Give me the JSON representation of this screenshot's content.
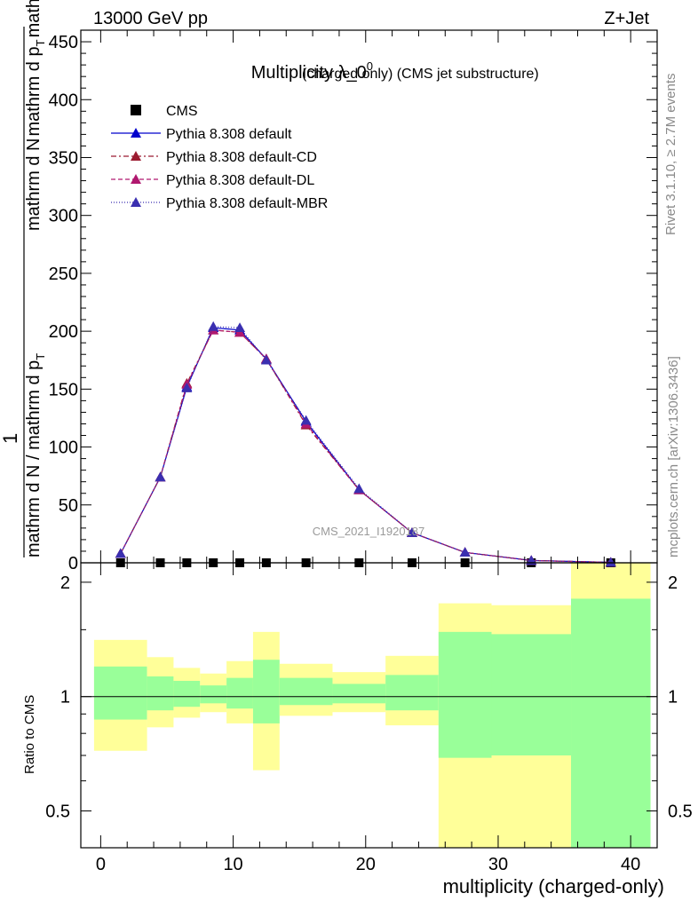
{
  "header": {
    "left": "13000 GeV pp",
    "right": "Z+Jet"
  },
  "side_notes": {
    "rivet": "Rivet 3.1.10, ≥ 2.7M events",
    "mcplots": "mcplots.cern.ch [arXiv:1306.3436]"
  },
  "watermark": "CMS_2021_I1920187",
  "chart_data": {
    "type": "line",
    "title": "Multiplicity λ_0",
    "title_sup": "0",
    "title_suffix": "(charged only) (CMS jet substructure)",
    "main_panel": {
      "ylabel_top": "1",
      "ylabel_numerator": "mathrm d N",
      "ylabel_bottom": "mathrm d N / mathrm d p",
      "ylabel_bottom_sub": "T",
      "ylabel_bottom_tail": "mathrm d p",
      "ylabel_bottom_sub2": "T",
      "ylabel_bottom_end": "mathrm d lambda",
      "ylim": [
        0,
        460
      ],
      "yticks": [
        0,
        50,
        100,
        150,
        200,
        250,
        300,
        350,
        400,
        450
      ],
      "legend_position": "top-left",
      "series": [
        {
          "name": "CMS",
          "marker": "square",
          "color": "#000000",
          "x": [
            1.5,
            4.5,
            6.5,
            8.5,
            10.5,
            12.5,
            15.5,
            19.5,
            23.5,
            27.5,
            32.5,
            38.5
          ],
          "y": [
            0,
            0,
            0,
            0,
            0,
            0,
            0,
            0,
            0,
            0,
            0,
            0
          ]
        },
        {
          "name": "Pythia 8.308 default",
          "marker": "triangle",
          "color": "#0000cc",
          "dash": "",
          "x": [
            1.5,
            4.5,
            6.5,
            8.5,
            10.5,
            12.5,
            15.5,
            19.5,
            23.5,
            27.5,
            32.5,
            38.5
          ],
          "y": [
            8,
            74,
            152,
            203,
            201,
            176,
            122,
            63,
            26,
            9,
            2,
            0.4
          ]
        },
        {
          "name": "Pythia 8.308 default-CD",
          "marker": "triangle",
          "color": "#9b1b30",
          "dash": "6,3,2,3",
          "x": [
            1.5,
            4.5,
            6.5,
            8.5,
            10.5,
            12.5,
            15.5,
            19.5,
            23.5,
            27.5,
            32.5,
            38.5
          ],
          "y": [
            8,
            74,
            155,
            201,
            199,
            176,
            119,
            63,
            26,
            9,
            2,
            0.4
          ]
        },
        {
          "name": "Pythia 8.308 default-DL",
          "marker": "triangle",
          "color": "#b0186f",
          "dash": "5,3",
          "x": [
            1.5,
            4.5,
            6.5,
            8.5,
            10.5,
            12.5,
            15.5,
            19.5,
            23.5,
            27.5,
            32.5,
            38.5
          ],
          "y": [
            8,
            74,
            154,
            201,
            199,
            176,
            120,
            63,
            26,
            9,
            2,
            0.4
          ]
        },
        {
          "name": "Pythia 8.308 default-MBR",
          "marker": "triangle",
          "color": "#3a2fb0",
          "dash": "1,2",
          "x": [
            1.5,
            4.5,
            6.5,
            8.5,
            10.5,
            12.5,
            15.5,
            19.5,
            23.5,
            27.5,
            32.5,
            38.5
          ],
          "y": [
            8,
            74,
            151,
            204,
            203,
            175,
            123,
            64,
            26,
            9,
            2,
            0.4
          ]
        }
      ]
    },
    "ratio_panel": {
      "ylabel": "Ratio to CMS",
      "yticks": [
        0.5,
        1,
        2
      ],
      "ylim": [
        0.4,
        2.25
      ],
      "green_color": "#99ff99",
      "yellow_color": "#ffff99",
      "bands": [
        {
          "x0": -0.5,
          "x1": 3.5,
          "y_lo": 0.72,
          "g_lo": 0.87,
          "g_hi": 1.2,
          "y_hi": 1.41
        },
        {
          "x0": 3.5,
          "x1": 5.5,
          "y_lo": 0.83,
          "g_lo": 0.92,
          "g_hi": 1.13,
          "y_hi": 1.27
        },
        {
          "x0": 5.5,
          "x1": 7.5,
          "y_lo": 0.88,
          "g_lo": 0.94,
          "g_hi": 1.1,
          "y_hi": 1.19
        },
        {
          "x0": 7.5,
          "x1": 9.5,
          "y_lo": 0.91,
          "g_lo": 0.96,
          "g_hi": 1.07,
          "y_hi": 1.15
        },
        {
          "x0": 9.5,
          "x1": 11.5,
          "y_lo": 0.85,
          "g_lo": 0.93,
          "g_hi": 1.12,
          "y_hi": 1.24
        },
        {
          "x0": 11.5,
          "x1": 13.5,
          "y_lo": 0.64,
          "g_lo": 0.85,
          "g_hi": 1.25,
          "y_hi": 1.48
        },
        {
          "x0": 13.5,
          "x1": 17.5,
          "y_lo": 0.89,
          "g_lo": 0.95,
          "g_hi": 1.12,
          "y_hi": 1.22
        },
        {
          "x0": 17.5,
          "x1": 21.5,
          "y_lo": 0.91,
          "g_lo": 0.96,
          "g_hi": 1.08,
          "y_hi": 1.16
        },
        {
          "x0": 21.5,
          "x1": 25.5,
          "y_lo": 0.84,
          "g_lo": 0.92,
          "g_hi": 1.14,
          "y_hi": 1.28
        },
        {
          "x0": 25.5,
          "x1": 29.5,
          "y_lo": 0.36,
          "g_lo": 0.69,
          "g_hi": 1.48,
          "y_hi": 1.76
        },
        {
          "x0": 29.5,
          "x1": 35.5,
          "y_lo": 0.36,
          "g_lo": 0.7,
          "g_hi": 1.46,
          "y_hi": 1.74
        },
        {
          "x0": 35.5,
          "x1": 41.5,
          "y_lo": 0.36,
          "g_lo": 0.36,
          "g_hi": 1.81,
          "y_hi": 2.25
        }
      ]
    },
    "xlabel": "multiplicity (charged-only)",
    "xlim": [
      -1.5,
      42
    ],
    "xticks": [
      0,
      10,
      20,
      30,
      40
    ]
  }
}
